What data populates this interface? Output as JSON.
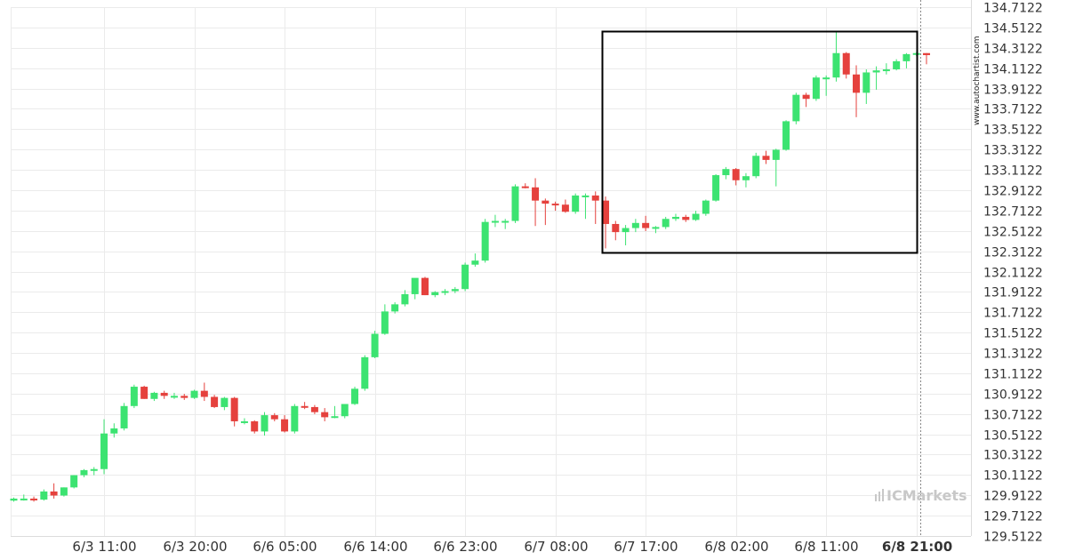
{
  "brand": {
    "watermark": "www.autochartist.com",
    "logo_text": "ICMarkets"
  },
  "chart_data": {
    "type": "candlestick",
    "y_ticks": [
      "134.7122",
      "134.5122",
      "134.3122",
      "134.1122",
      "133.9122",
      "133.7122",
      "133.5122",
      "133.3122",
      "133.1122",
      "132.9122",
      "132.7122",
      "132.5122",
      "132.3122",
      "132.1122",
      "131.9122",
      "131.7122",
      "131.5122",
      "131.3122",
      "131.1122",
      "130.9122",
      "130.7122",
      "130.5122",
      "130.3122",
      "130.1122",
      "129.9122",
      "129.7122",
      "129.5122"
    ],
    "ylim": [
      129.5122,
      134.7122
    ],
    "x_ticks": [
      {
        "label": "6/3 11:00",
        "index": 9
      },
      {
        "label": "6/3 20:00",
        "index": 18
      },
      {
        "label": "6/6 05:00",
        "index": 27
      },
      {
        "label": "6/6 14:00",
        "index": 36
      },
      {
        "label": "6/6 23:00",
        "index": 45
      },
      {
        "label": "6/7 08:00",
        "index": 54
      },
      {
        "label": "6/7 17:00",
        "index": 63
      },
      {
        "label": "6/8 02:00",
        "index": 72
      },
      {
        "label": "6/8 11:00",
        "index": 81
      },
      {
        "label": "6/8 21:00",
        "index": 90,
        "bold": true
      }
    ],
    "current_time_index": 90,
    "pattern_box": {
      "start_index": 59,
      "end_index": 90,
      "low": 132.3,
      "high": 134.48
    },
    "colors": {
      "up": "#3ce371",
      "down": "#e5413d",
      "grid": "#ebebeb",
      "box": "#000000"
    },
    "candles": [
      {
        "o": 129.86,
        "h": 129.89,
        "l": 129.85,
        "c": 129.88
      },
      {
        "o": 129.88,
        "h": 129.92,
        "l": 129.86,
        "c": 129.88
      },
      {
        "o": 129.88,
        "h": 129.9,
        "l": 129.85,
        "c": 129.87
      },
      {
        "o": 129.87,
        "h": 129.97,
        "l": 129.86,
        "c": 129.95
      },
      {
        "o": 129.95,
        "h": 130.03,
        "l": 129.88,
        "c": 129.91
      },
      {
        "o": 129.91,
        "h": 129.99,
        "l": 129.9,
        "c": 129.99
      },
      {
        "o": 129.99,
        "h": 130.11,
        "l": 129.98,
        "c": 130.11
      },
      {
        "o": 130.11,
        "h": 130.17,
        "l": 130.09,
        "c": 130.16
      },
      {
        "o": 130.16,
        "h": 130.19,
        "l": 130.11,
        "c": 130.17
      },
      {
        "o": 130.17,
        "h": 130.66,
        "l": 130.12,
        "c": 130.52
      },
      {
        "o": 130.52,
        "h": 130.62,
        "l": 130.48,
        "c": 130.57
      },
      {
        "o": 130.57,
        "h": 130.82,
        "l": 130.55,
        "c": 130.79
      },
      {
        "o": 130.79,
        "h": 131.0,
        "l": 130.77,
        "c": 130.98
      },
      {
        "o": 130.98,
        "h": 130.99,
        "l": 130.86,
        "c": 130.86
      },
      {
        "o": 130.86,
        "h": 130.93,
        "l": 130.84,
        "c": 130.92
      },
      {
        "o": 130.92,
        "h": 130.94,
        "l": 130.86,
        "c": 130.89
      },
      {
        "o": 130.89,
        "h": 130.92,
        "l": 130.86,
        "c": 130.89
      },
      {
        "o": 130.89,
        "h": 130.91,
        "l": 130.85,
        "c": 130.87
      },
      {
        "o": 130.87,
        "h": 130.95,
        "l": 130.86,
        "c": 130.94
      },
      {
        "o": 130.94,
        "h": 131.02,
        "l": 130.84,
        "c": 130.88
      },
      {
        "o": 130.88,
        "h": 130.9,
        "l": 130.77,
        "c": 130.78
      },
      {
        "o": 130.78,
        "h": 130.88,
        "l": 130.75,
        "c": 130.87
      },
      {
        "o": 130.87,
        "h": 130.88,
        "l": 130.59,
        "c": 130.64
      },
      {
        "o": 130.64,
        "h": 130.67,
        "l": 130.61,
        "c": 130.64
      },
      {
        "o": 130.64,
        "h": 130.65,
        "l": 130.52,
        "c": 130.54
      },
      {
        "o": 130.54,
        "h": 130.73,
        "l": 130.5,
        "c": 130.7
      },
      {
        "o": 130.7,
        "h": 130.72,
        "l": 130.64,
        "c": 130.66
      },
      {
        "o": 130.66,
        "h": 130.7,
        "l": 130.53,
        "c": 130.54
      },
      {
        "o": 130.54,
        "h": 130.81,
        "l": 130.52,
        "c": 130.79
      },
      {
        "o": 130.79,
        "h": 130.83,
        "l": 130.76,
        "c": 130.78
      },
      {
        "o": 130.78,
        "h": 130.8,
        "l": 130.71,
        "c": 130.73
      },
      {
        "o": 130.73,
        "h": 130.77,
        "l": 130.64,
        "c": 130.68
      },
      {
        "o": 130.68,
        "h": 130.79,
        "l": 130.67,
        "c": 130.69
      },
      {
        "o": 130.69,
        "h": 130.81,
        "l": 130.67,
        "c": 130.81
      },
      {
        "o": 130.81,
        "h": 130.98,
        "l": 130.8,
        "c": 130.96
      },
      {
        "o": 130.96,
        "h": 131.29,
        "l": 130.94,
        "c": 131.27
      },
      {
        "o": 131.27,
        "h": 131.53,
        "l": 131.26,
        "c": 131.5
      },
      {
        "o": 131.5,
        "h": 131.79,
        "l": 131.49,
        "c": 131.72
      },
      {
        "o": 131.72,
        "h": 131.81,
        "l": 131.7,
        "c": 131.79
      },
      {
        "o": 131.79,
        "h": 131.93,
        "l": 131.77,
        "c": 131.89
      },
      {
        "o": 131.89,
        "h": 132.02,
        "l": 131.84,
        "c": 132.05
      },
      {
        "o": 132.05,
        "h": 132.06,
        "l": 131.88,
        "c": 131.88
      },
      {
        "o": 131.88,
        "h": 131.92,
        "l": 131.86,
        "c": 131.91
      },
      {
        "o": 131.91,
        "h": 131.94,
        "l": 131.88,
        "c": 131.92
      },
      {
        "o": 131.92,
        "h": 131.96,
        "l": 131.9,
        "c": 131.94
      },
      {
        "o": 131.94,
        "h": 132.2,
        "l": 131.92,
        "c": 132.18
      },
      {
        "o": 132.18,
        "h": 132.29,
        "l": 132.16,
        "c": 132.22
      },
      {
        "o": 132.22,
        "h": 132.63,
        "l": 132.2,
        "c": 132.6
      },
      {
        "o": 132.6,
        "h": 132.67,
        "l": 132.55,
        "c": 132.61
      },
      {
        "o": 132.61,
        "h": 132.63,
        "l": 132.53,
        "c": 132.61
      },
      {
        "o": 132.61,
        "h": 132.97,
        "l": 132.59,
        "c": 132.95
      },
      {
        "o": 132.95,
        "h": 132.98,
        "l": 132.93,
        "c": 132.94
      },
      {
        "o": 132.94,
        "h": 133.03,
        "l": 132.56,
        "c": 132.81
      },
      {
        "o": 132.81,
        "h": 132.83,
        "l": 132.57,
        "c": 132.78
      },
      {
        "o": 132.78,
        "h": 132.8,
        "l": 132.71,
        "c": 132.77
      },
      {
        "o": 132.77,
        "h": 132.82,
        "l": 132.69,
        "c": 132.7
      },
      {
        "o": 132.7,
        "h": 132.88,
        "l": 132.68,
        "c": 132.86
      },
      {
        "o": 132.86,
        "h": 132.88,
        "l": 132.63,
        "c": 132.86
      },
      {
        "o": 132.86,
        "h": 132.9,
        "l": 132.58,
        "c": 132.81
      },
      {
        "o": 132.81,
        "h": 132.85,
        "l": 132.34,
        "c": 132.58
      },
      {
        "o": 132.58,
        "h": 132.61,
        "l": 132.42,
        "c": 132.5
      },
      {
        "o": 132.5,
        "h": 132.57,
        "l": 132.37,
        "c": 132.54
      },
      {
        "o": 132.54,
        "h": 132.63,
        "l": 132.5,
        "c": 132.59
      },
      {
        "o": 132.59,
        "h": 132.66,
        "l": 132.51,
        "c": 132.54
      },
      {
        "o": 132.54,
        "h": 132.56,
        "l": 132.49,
        "c": 132.55
      },
      {
        "o": 132.55,
        "h": 132.65,
        "l": 132.53,
        "c": 132.63
      },
      {
        "o": 132.63,
        "h": 132.68,
        "l": 132.61,
        "c": 132.65
      },
      {
        "o": 132.65,
        "h": 132.67,
        "l": 132.6,
        "c": 132.62
      },
      {
        "o": 132.62,
        "h": 132.71,
        "l": 132.61,
        "c": 132.68
      },
      {
        "o": 132.68,
        "h": 132.82,
        "l": 132.66,
        "c": 132.81
      },
      {
        "o": 132.81,
        "h": 133.07,
        "l": 132.8,
        "c": 133.06
      },
      {
        "o": 133.06,
        "h": 133.14,
        "l": 133.02,
        "c": 133.12
      },
      {
        "o": 133.12,
        "h": 133.13,
        "l": 132.96,
        "c": 133.01
      },
      {
        "o": 133.01,
        "h": 133.08,
        "l": 132.94,
        "c": 133.05
      },
      {
        "o": 133.05,
        "h": 133.28,
        "l": 133.03,
        "c": 133.25
      },
      {
        "o": 133.25,
        "h": 133.3,
        "l": 133.17,
        "c": 133.21
      },
      {
        "o": 133.21,
        "h": 133.32,
        "l": 132.95,
        "c": 133.31
      },
      {
        "o": 133.31,
        "h": 133.6,
        "l": 133.3,
        "c": 133.59
      },
      {
        "o": 133.59,
        "h": 133.87,
        "l": 133.56,
        "c": 133.85
      },
      {
        "o": 133.85,
        "h": 133.87,
        "l": 133.73,
        "c": 133.81
      },
      {
        "o": 133.81,
        "h": 134.04,
        "l": 133.79,
        "c": 134.02
      },
      {
        "o": 134.02,
        "h": 134.04,
        "l": 133.84,
        "c": 134.02
      },
      {
        "o": 134.02,
        "h": 134.48,
        "l": 133.98,
        "c": 134.26
      },
      {
        "o": 134.26,
        "h": 134.27,
        "l": 134.01,
        "c": 134.05
      },
      {
        "o": 134.05,
        "h": 134.14,
        "l": 133.63,
        "c": 133.87
      },
      {
        "o": 133.87,
        "h": 134.1,
        "l": 133.76,
        "c": 134.07
      },
      {
        "o": 134.07,
        "h": 134.13,
        "l": 133.9,
        "c": 134.09
      },
      {
        "o": 134.09,
        "h": 134.16,
        "l": 134.05,
        "c": 134.1
      },
      {
        "o": 134.1,
        "h": 134.2,
        "l": 134.09,
        "c": 134.18
      },
      {
        "o": 134.18,
        "h": 134.26,
        "l": 134.11,
        "c": 134.25
      },
      {
        "o": 134.25,
        "h": 134.27,
        "l": 134.23,
        "c": 134.26
      },
      {
        "o": 134.26,
        "h": 134.26,
        "l": 134.15,
        "c": 134.24
      }
    ]
  }
}
